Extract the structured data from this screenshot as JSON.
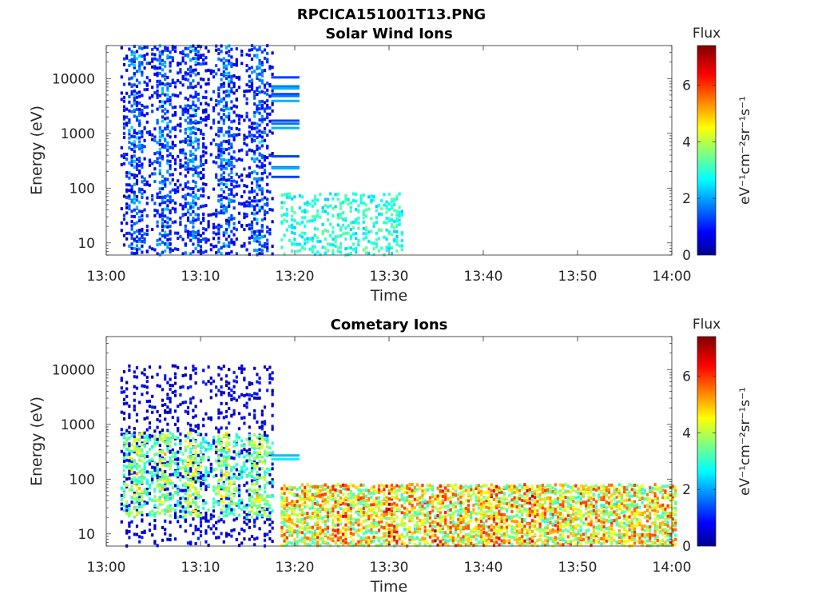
{
  "figure": {
    "title": "RPCICA151001T13.PNG"
  },
  "chart_data": [
    {
      "type": "heatmap",
      "title": "Solar Wind Ions",
      "xlabel": "Time",
      "ylabel": "Energy (eV)",
      "x_ticks": [
        "13:00",
        "13:10",
        "13:20",
        "13:30",
        "13:40",
        "13:50",
        "14:00"
      ],
      "x_range": [
        "13:00",
        "14:00"
      ],
      "y_scale": "log",
      "y_ticks": [
        10,
        100,
        1000,
        10000
      ],
      "y_range": [
        6,
        40000
      ],
      "colorbar": {
        "label": "Flux",
        "unit_label": "eV⁻¹cm⁻²sr⁻¹s⁻¹",
        "range": [
          0,
          7.4
        ],
        "ticks": [
          0,
          2,
          4,
          6
        ],
        "colormap": "jet"
      },
      "regions": [
        {
          "t_start": "13:01.5",
          "t_end": "13:17.5",
          "e_min": 6,
          "e_max": 40000,
          "density": 0.55,
          "flux_low": 0.3,
          "flux_high": 2.9,
          "bursts": true,
          "burst_centers": [
            "13:03",
            "13:06",
            "13:09",
            "13:12.5",
            "13:16"
          ]
        },
        {
          "t_start": "13:17.5",
          "t_end": "13:20.5",
          "lines_at_eV": [
            10500,
            7200,
            6600,
            5200,
            4800,
            3900,
            1700,
            1500,
            1250,
            380,
            240,
            230,
            160
          ],
          "flux": 1.4
        },
        {
          "t_start": "13:18.5",
          "t_end": "13:31.5",
          "e_min": 6,
          "e_max": 80,
          "density": 0.45,
          "flux_low": 2.4,
          "flux_high": 3.6
        }
      ]
    },
    {
      "type": "heatmap",
      "title": "Cometary Ions",
      "xlabel": "Time",
      "ylabel": "Energy (eV)",
      "x_ticks": [
        "13:00",
        "13:10",
        "13:20",
        "13:30",
        "13:40",
        "13:50",
        "14:00"
      ],
      "x_range": [
        "13:00",
        "14:00"
      ],
      "y_scale": "log",
      "y_ticks": [
        10,
        100,
        1000,
        10000
      ],
      "y_range": [
        6,
        40000
      ],
      "colorbar": {
        "label": "Flux",
        "unit_label": "eV⁻¹cm⁻²sr⁻¹s⁻¹",
        "range": [
          0,
          7.4
        ],
        "ticks": [
          0,
          2,
          4,
          6
        ],
        "colormap": "jet"
      },
      "regions": [
        {
          "t_start": "13:01.5",
          "t_end": "13:17.5",
          "e_min": 6,
          "e_max": 12000,
          "density": 0.25,
          "flux_low": 0.2,
          "flux_high": 1.2,
          "bursts": false
        },
        {
          "t_start": "13:01.5",
          "t_end": "13:17.5",
          "e_min": 20,
          "e_max": 700,
          "density": 0.6,
          "flux_low": 2.5,
          "flux_high": 5.5,
          "bursts": true,
          "burst_centers": [
            "13:03",
            "13:06",
            "13:09",
            "13:12.5",
            "13:16"
          ]
        },
        {
          "t_start": "13:17.5",
          "t_end": "13:20.5",
          "lines_at_eV": [
            270,
            230
          ],
          "flux": 2.3
        },
        {
          "t_start": "13:18.5",
          "t_end": "14:00.5",
          "e_min": 6,
          "e_max": 80,
          "density": 0.85,
          "flux_low": 3.0,
          "flux_high": 6.2,
          "peak_times": [
            "13:25",
            "13:30",
            "13:35",
            "13:41",
            "13:45"
          ]
        }
      ]
    }
  ]
}
